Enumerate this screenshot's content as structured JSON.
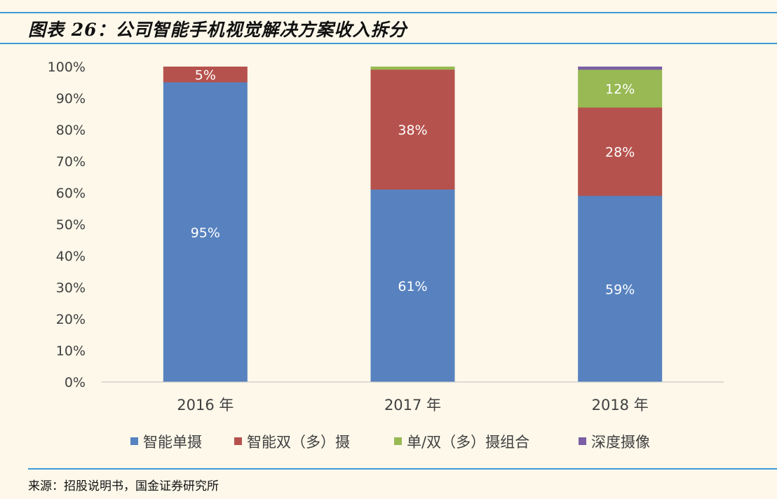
{
  "header": {
    "title": "图表 26：公司智能手机视觉解决方案收入拆分"
  },
  "footer": {
    "source": "来源：招股说明书，国金证券研究所"
  },
  "chart_data": {
    "type": "bar",
    "stacked": true,
    "title": "",
    "xlabel": "",
    "ylabel": "",
    "categories": [
      "2016 年",
      "2017 年",
      "2018 年"
    ],
    "ylim": [
      0,
      100
    ],
    "yticks": [
      "0%",
      "10%",
      "20%",
      "30%",
      "40%",
      "50%",
      "60%",
      "70%",
      "80%",
      "90%",
      "100%"
    ],
    "grid": false,
    "legend": "bottom",
    "series": [
      {
        "name": "智能单摄",
        "values": [
          95,
          61,
          59
        ],
        "labels": [
          "95%",
          "61%",
          "59%"
        ],
        "color": "#5782bf"
      },
      {
        "name": "智能双（多）摄",
        "values": [
          5,
          38,
          28
        ],
        "labels": [
          "5%",
          "38%",
          "28%"
        ],
        "color": "#b6524d"
      },
      {
        "name": "单/双（多）摄组合",
        "values": [
          0,
          1,
          12
        ],
        "labels": [
          "",
          "",
          "12%"
        ],
        "color": "#98b954"
      },
      {
        "name": "深度摄像",
        "values": [
          0,
          0,
          1
        ],
        "labels": [
          "",
          "",
          ""
        ],
        "color": "#7c5ea5"
      }
    ]
  }
}
